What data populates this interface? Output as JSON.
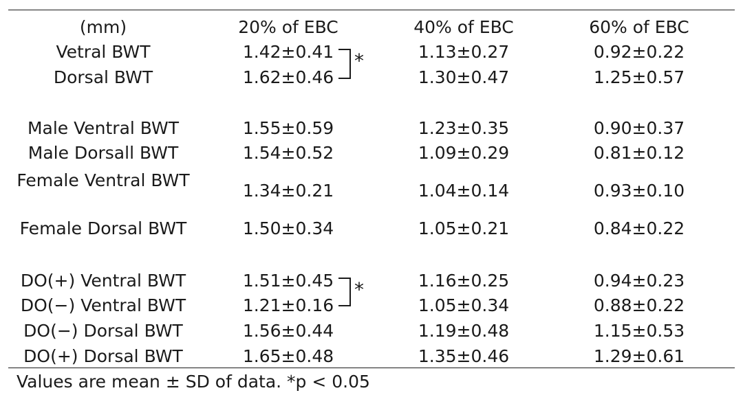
{
  "table": {
    "header": [
      "(mm)",
      "20% of EBC",
      "40% of EBC",
      "60% of EBC"
    ],
    "groups": [
      {
        "rows": [
          {
            "label": "Vetral BWT",
            "values": [
              "1.42±0.41",
              "1.13±0.27",
              "0.92±0.22"
            ]
          },
          {
            "label": "Dorsal BWT",
            "values": [
              "1.62±0.46",
              "1.30±0.47",
              "1.25±0.57"
            ]
          }
        ],
        "significance": "*"
      },
      {
        "rows": [
          {
            "label": "Male Ventral BWT",
            "values": [
              "1.55±0.59",
              "1.23±0.35",
              "0.90±0.37"
            ]
          },
          {
            "label": "Male Dorsall BWT",
            "values": [
              "1.54±0.52",
              "1.09±0.29",
              "0.81±0.12"
            ]
          },
          {
            "label": "Female Ventral BWT",
            "values": [
              "1.34±0.21",
              "1.04±0.14",
              "0.93±0.10"
            ]
          },
          {
            "label": "Female Dorsal BWT",
            "values": [
              "1.50±0.34",
              "1.05±0.21",
              "0.84±0.22"
            ]
          }
        ]
      },
      {
        "rows": [
          {
            "label": "DO(+) Ventral BWT",
            "values": [
              "1.51±0.45",
              "1.16±0.25",
              "0.94±0.23"
            ]
          },
          {
            "label": "DO(−) Ventral BWT",
            "values": [
              "1.21±0.16",
              "1.05±0.34",
              "0.88±0.22"
            ]
          },
          {
            "label": "DO(−) Dorsal BWT",
            "values": [
              "1.56±0.44",
              "1.19±0.48",
              "1.15±0.53"
            ]
          },
          {
            "label": "DO(+) Dorsal BWT",
            "values": [
              "1.65±0.48",
              "1.35±0.46",
              "1.29±0.61"
            ]
          }
        ],
        "significance": "*"
      }
    ],
    "footnote": "Values are mean ± SD of data. *p < 0.05"
  }
}
